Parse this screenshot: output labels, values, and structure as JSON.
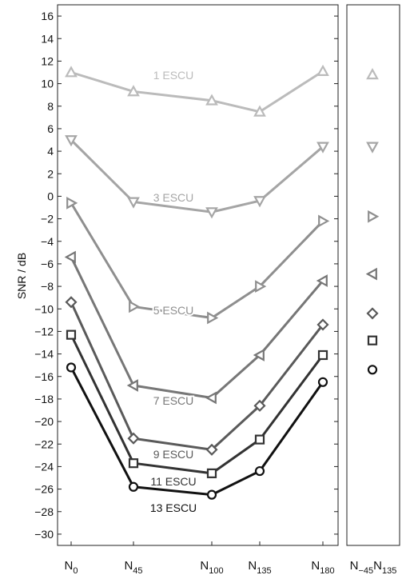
{
  "chart_data": {
    "type": "line",
    "ylabel": "SNR / dB",
    "ylim": [
      -31,
      17
    ],
    "yticks": [
      16,
      14,
      12,
      10,
      8,
      6,
      4,
      2,
      0,
      -2,
      -4,
      -6,
      -8,
      -10,
      -12,
      -14,
      -16,
      -18,
      -20,
      -22,
      -24,
      -26,
      -28,
      -30
    ],
    "categories": [
      {
        "main": "N",
        "sub": "0"
      },
      {
        "main": "N",
        "sub": "45"
      },
      {
        "main": "N",
        "sub": "100"
      },
      {
        "main": "N",
        "sub": "135"
      },
      {
        "main": "N",
        "sub": "180"
      }
    ],
    "side_panel_label": {
      "a_main": "N",
      "a_sub": "−45",
      "b_main": "N",
      "b_sub": "135"
    },
    "series": [
      {
        "name": "1 ESCU",
        "marker": "triangle-up",
        "color": "#bbbbbb",
        "values": [
          11.0,
          9.3,
          8.5,
          7.5,
          11.1
        ],
        "side_value": 10.8
      },
      {
        "name": "3 ESCU",
        "marker": "triangle-down",
        "color": "#a5a5a5",
        "values": [
          5.0,
          -0.5,
          -1.4,
          -0.4,
          4.4
        ],
        "side_value": 4.4
      },
      {
        "name": "5 ESCU",
        "marker": "triangle-right",
        "color": "#8f8f8f",
        "values": [
          -0.6,
          -9.8,
          -10.8,
          -8.0,
          -2.2
        ],
        "side_value": -1.8
      },
      {
        "name": "7 ESCU",
        "marker": "triangle-left",
        "color": "#777777",
        "values": [
          -5.4,
          -16.8,
          -17.9,
          -14.1,
          -7.5
        ],
        "side_value": -6.9
      },
      {
        "name": "9 ESCU",
        "marker": "diamond",
        "color": "#5a5a5a",
        "values": [
          -9.4,
          -21.5,
          -22.5,
          -18.6,
          -11.4
        ],
        "side_value": -10.4
      },
      {
        "name": "11 ESCU",
        "marker": "square",
        "color": "#333333",
        "values": [
          -12.3,
          -23.7,
          -24.6,
          -21.6,
          -14.1
        ],
        "side_value": -12.8
      },
      {
        "name": "13 ESCU",
        "marker": "circle",
        "color": "#111111",
        "values": [
          -15.2,
          -25.8,
          -26.5,
          -24.4,
          -16.5
        ],
        "side_value": -15.4
      }
    ]
  }
}
